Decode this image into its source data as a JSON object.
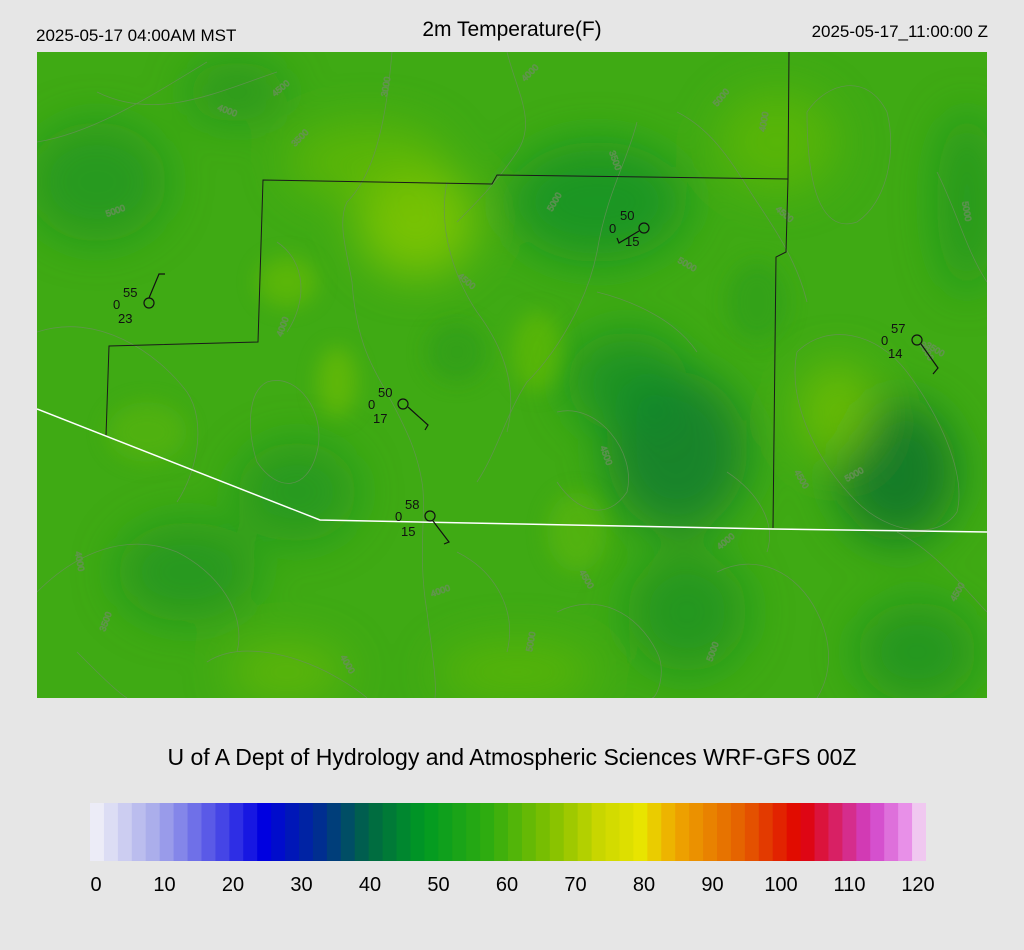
{
  "header": {
    "local_time": "2025-05-17 04:00AM MST",
    "title": "2m Temperature(F)",
    "utc_time": "2025-05-17_11:00:00 Z"
  },
  "credit": "U of A Dept of Hydrology and Atmospheric Sciences WRF-GFS 00Z",
  "colorbar": {
    "ticks": [
      "0",
      "10",
      "20",
      "30",
      "40",
      "50",
      "60",
      "70",
      "80",
      "90",
      "100",
      "110",
      "120"
    ],
    "min": 0,
    "max": 120,
    "stops": [
      {
        "v": 0,
        "c": "#f4f4f8"
      },
      {
        "v": 10,
        "c": "#a3a6ea"
      },
      {
        "v": 20,
        "c": "#3a3ae6"
      },
      {
        "v": 25,
        "c": "#0000e0"
      },
      {
        "v": 33,
        "c": "#002e90"
      },
      {
        "v": 40,
        "c": "#006644"
      },
      {
        "v": 48,
        "c": "#009a22"
      },
      {
        "v": 57,
        "c": "#2eac10"
      },
      {
        "v": 66,
        "c": "#80c000"
      },
      {
        "v": 73,
        "c": "#c8d600"
      },
      {
        "v": 79,
        "c": "#e8e400"
      },
      {
        "v": 84,
        "c": "#eea800"
      },
      {
        "v": 94,
        "c": "#e45c00"
      },
      {
        "v": 102,
        "c": "#e00000"
      },
      {
        "v": 112,
        "c": "#d040c8"
      },
      {
        "v": 117,
        "c": "#e890e8"
      },
      {
        "v": 120,
        "c": "#f4e4f4"
      }
    ]
  },
  "map": {
    "base_color": "#3faa14",
    "border_color": "#1a1a1a",
    "state_line_color": "#ffffff",
    "contour_color": "#6b8f5e",
    "contour_labels": [
      "4000",
      "4500",
      "3000",
      "4000",
      "5000",
      "4000",
      "3500",
      "5000",
      "3500",
      "4500",
      "5000",
      "5000",
      "4500",
      "5000",
      "3500",
      "4000",
      "4500",
      "4500",
      "5000",
      "4000",
      "4000",
      "4500",
      "4000",
      "5000",
      "3500",
      "4000",
      "5000",
      "4500",
      "3000"
    ]
  },
  "stations": [
    {
      "id": "stn-a",
      "temp": "55",
      "left": "0",
      "dew": "23"
    },
    {
      "id": "stn-b",
      "temp": "50",
      "left": "0",
      "dew": "15"
    },
    {
      "id": "stn-c",
      "temp": "57",
      "left": "0",
      "dew": "14"
    },
    {
      "id": "stn-d",
      "temp": "50",
      "left": "0",
      "dew": "17"
    },
    {
      "id": "stn-e",
      "temp": "58",
      "left": "0",
      "dew": "15"
    }
  ]
}
